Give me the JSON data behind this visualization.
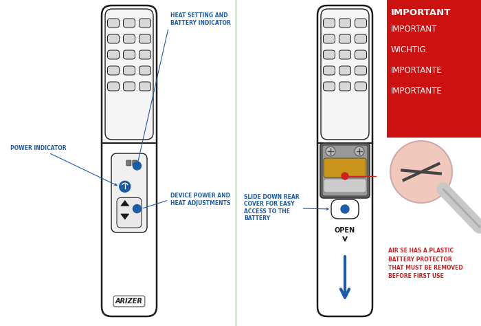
{
  "bg_color": "#ffffff",
  "lc": "#1a1a1a",
  "bc": "#1a5ca8",
  "rc": "#cc2222",
  "ann_color": "#1a5ca8",
  "divider_color": "#90ee90",
  "imp_bg": "#cc1111",
  "slot_fill": "#d8d8d8",
  "body_fill": "#ffffff",
  "panel_fill": "#f0f0f0",
  "vent_fill": "#f2f2f2",
  "bat_dark": "#555555",
  "bat_gold": "#c8941a",
  "bat_gray": "#a0a0a0",
  "imp_first": "IMPORTANT",
  "imp_lines": [
    "IMPORTANT",
    "WICHTIG",
    "IMPORTANTE",
    "IMPORTANTE"
  ],
  "left_label1": "HEAT SETTING AND\nBATTERY INDICATOR",
  "left_label2": "POWER INDICATOR",
  "left_label3": "DEVICE POWER AND\nHEAT ADJUSTMENTS",
  "right_label1": "SLIDE DOWN REAR\nCOVER FOR EASY\nACCESS TO THE\nBATTERY",
  "right_label2": "AIR SE HAS A PLASTIC\nBATTERY PROTECTOR\nTHAT MUST BE REMOVED\nBEFORE FIRST USE",
  "open_text": "OPEN"
}
